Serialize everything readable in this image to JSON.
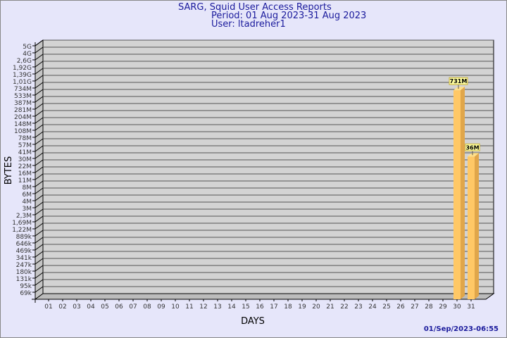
{
  "header": {
    "title": "SARG, Squid User Access Reports",
    "period": "Period: 01 Aug 2023-31 Aug 2023",
    "user": "User: ltadreher1"
  },
  "footer": {
    "timestamp": "01/Sep/2023-06:55"
  },
  "colors": {
    "background": "#e6e6fa",
    "plot": "#d3d3d3",
    "bar": "#ffc866",
    "bar_side": "#e0a64a",
    "label_bg": "#ffffa0",
    "title": "#1a1a9c"
  },
  "chart_data": {
    "type": "bar",
    "xlabel": "DAYS",
    "ylabel": "BYTES",
    "yscale": "log",
    "grid": true,
    "y_tick_labels": [
      "5G",
      "4G",
      "2,6G",
      "1,92G",
      "1,39G",
      "1,01G",
      "734M",
      "533M",
      "387M",
      "281M",
      "204M",
      "148M",
      "108M",
      "78M",
      "57M",
      "41M",
      "30M",
      "22M",
      "16M",
      "11M",
      "8M",
      "6M",
      "4M",
      "3M",
      "2,3M",
      "1,69M",
      "1,22M",
      "889k",
      "646k",
      "469k",
      "341k",
      "247k",
      "180k",
      "131k",
      "95k",
      "69k"
    ],
    "ylim": [
      69000,
      5000000000
    ],
    "categories": [
      "01",
      "02",
      "03",
      "04",
      "05",
      "06",
      "07",
      "08",
      "09",
      "10",
      "11",
      "12",
      "13",
      "14",
      "15",
      "16",
      "17",
      "18",
      "19",
      "20",
      "21",
      "22",
      "23",
      "24",
      "25",
      "26",
      "27",
      "28",
      "29",
      "30",
      "31"
    ],
    "bars": [
      {
        "category": "30",
        "value": 731000000,
        "label": "731M"
      },
      {
        "category": "31",
        "value": 36000000,
        "label": "36M"
      }
    ]
  }
}
